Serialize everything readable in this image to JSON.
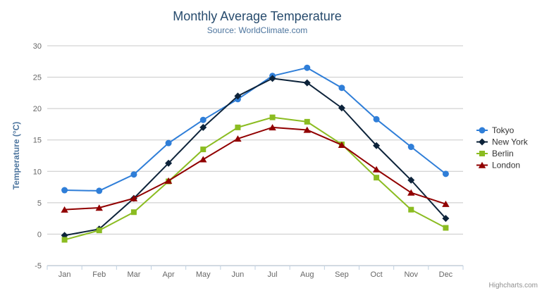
{
  "header": {
    "title": "Monthly Average Temperature",
    "subtitle": "Source: WorldClimate.com"
  },
  "credits": {
    "label": "Highcharts.com"
  },
  "export_menu": {
    "icon": "hamburger-icon"
  },
  "theme": {
    "title_color": "#274b6d",
    "subtitle_color": "#4d759e",
    "axis_title_color": "#4d759e",
    "axis_label_color": "#666666",
    "grid_line_color": "#c8c8c8",
    "axis_line_color": "#c0d0e0",
    "legend_text_color": "#333333",
    "credits_color": "#909090",
    "export_icon_color": "#666666",
    "background_color": "#ffffff"
  },
  "chart_data": {
    "type": "line",
    "title": "Monthly Average Temperature",
    "subtitle": "Source: WorldClimate.com",
    "categories": [
      "Jan",
      "Feb",
      "Mar",
      "Apr",
      "May",
      "Jun",
      "Jul",
      "Aug",
      "Sep",
      "Oct",
      "Nov",
      "Dec"
    ],
    "series": [
      {
        "name": "Tokyo",
        "color": "#2f7ed8",
        "marker": "circle",
        "values": [
          7.0,
          6.9,
          9.5,
          14.5,
          18.2,
          21.5,
          25.2,
          26.5,
          23.3,
          18.3,
          13.9,
          9.6
        ]
      },
      {
        "name": "New York",
        "color": "#0d233a",
        "marker": "diamond",
        "values": [
          -0.2,
          0.8,
          5.7,
          11.3,
          17.0,
          22.0,
          24.8,
          24.1,
          20.1,
          14.1,
          8.6,
          2.5
        ]
      },
      {
        "name": "Berlin",
        "color": "#8bbc21",
        "marker": "square",
        "values": [
          -0.9,
          0.6,
          3.5,
          8.4,
          13.5,
          17.0,
          18.6,
          17.9,
          14.3,
          9.0,
          3.9,
          1.0
        ]
      },
      {
        "name": "London",
        "color": "#910000",
        "marker": "triangle",
        "values": [
          3.9,
          4.2,
          5.7,
          8.5,
          11.9,
          15.2,
          17.0,
          16.6,
          14.2,
          10.3,
          6.6,
          4.8
        ]
      }
    ],
    "xlabel": "",
    "ylabel": "Temperature (°C)",
    "ylim": [
      -5,
      30
    ],
    "ytick_interval": 5,
    "grid": true,
    "legend_position": "right"
  }
}
